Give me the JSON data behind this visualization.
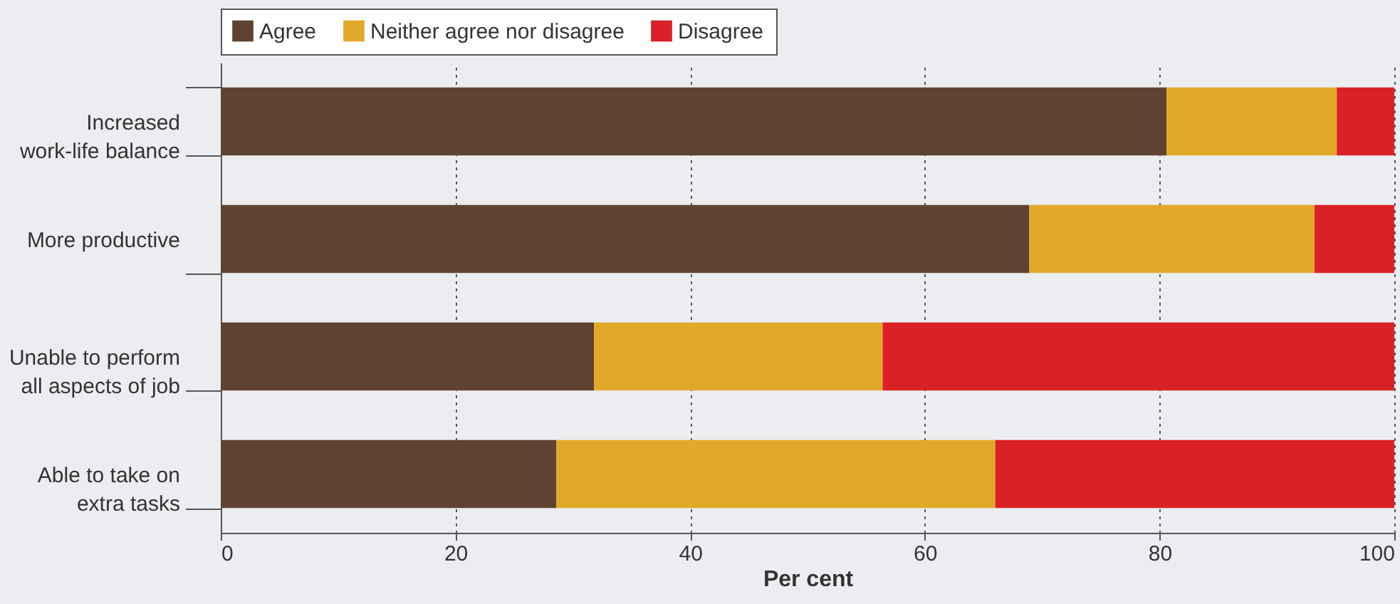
{
  "chart_data": {
    "type": "bar",
    "orientation": "horizontal",
    "stacked": true,
    "categories": [
      "Increased work-life balance",
      "More productive",
      "Unable to perform all aspects of job",
      "Able to take on extra tasks"
    ],
    "series": [
      {
        "name": "Agree",
        "color": "#5f4330",
        "values": [
          80.6,
          68.9,
          31.8,
          28.6
        ]
      },
      {
        "name": "Neither agree nor disagree",
        "color": "#e2a82a",
        "values": [
          14.5,
          24.3,
          24.6,
          37.4
        ]
      },
      {
        "name": "Disagree",
        "color": "#d92127",
        "values": [
          4.9,
          6.8,
          43.6,
          34
        ]
      }
    ],
    "xlabel": "Per cent",
    "xlim": [
      0,
      100
    ],
    "xticks": [
      0,
      20,
      40,
      60,
      80,
      100
    ],
    "grid": "x",
    "legend": "top"
  }
}
